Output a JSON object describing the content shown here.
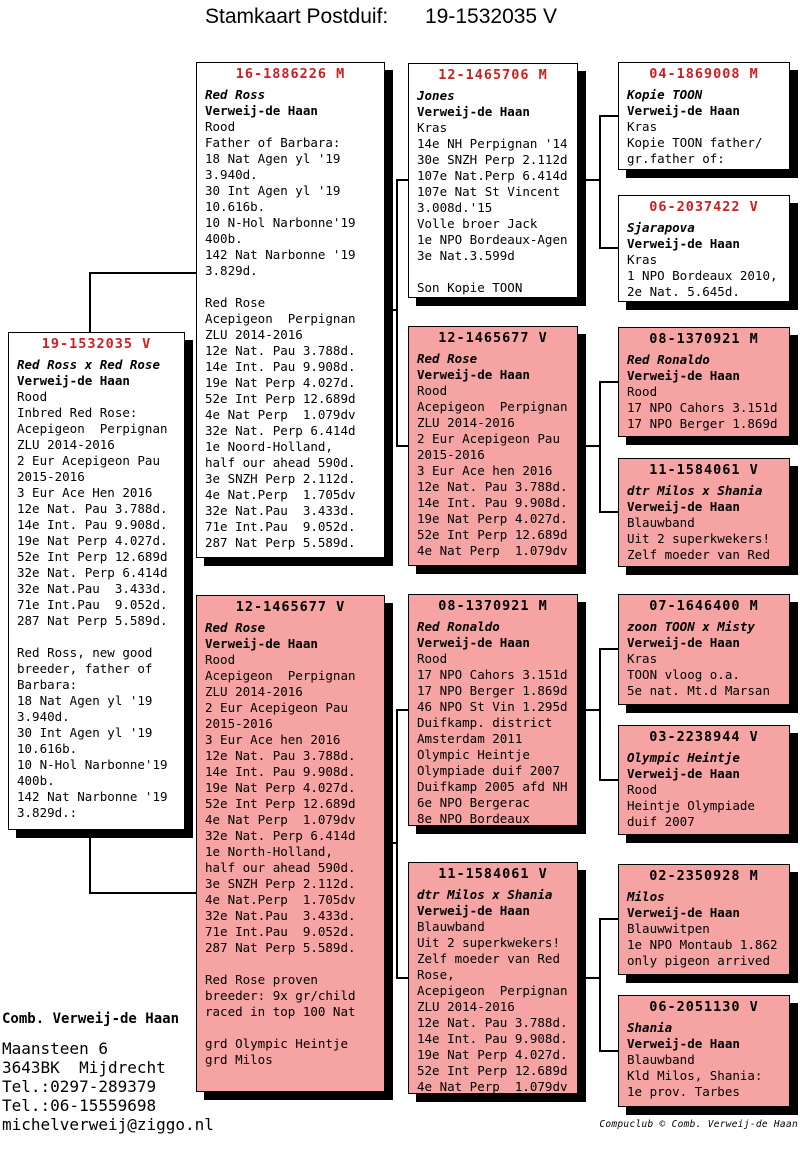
{
  "header": {
    "title_label": "Stamkaart Postduif:",
    "ring_number": "19-1532035 V"
  },
  "colors": {
    "box_pink": "#F5A3A3",
    "title_red": "#CC2020"
  },
  "boxes": [
    {
      "id": "subject",
      "ring": "19-1532035 V",
      "name": "Red Ross x Red Rose",
      "owner": "Verweij-de Haan",
      "lines": [
        "Rood",
        "Inbred Red Rose:",
        "Acepigeon  Perpignan",
        "ZLU 2014-2016",
        "2 Eur Acepigeon Pau",
        "2015-2016",
        "3 Eur Ace Hen 2016",
        "12e Nat. Pau 3.788d.",
        "14e Int. Pau 9.908d.",
        "19e Nat Perp 4.027d.",
        "52e Int Perp 12.689d",
        "32e Nat. Perp 6.414d",
        "32e Nat.Pau  3.433d.",
        "71e Int.Pau  9.052d.",
        "287 Nat Perp 5.589d.",
        "",
        "Red Ross, new good",
        "breeder, father of",
        "Barbara:",
        "18 Nat Agen yl '19",
        "3.940d.",
        "30 Int Agen yl '19",
        "10.616b.",
        "10 N-Hol Narbonne'19",
        "400b.",
        "142 Nat Narbonne '19",
        "3.829d.:"
      ]
    },
    {
      "id": "father",
      "ring": "16-1886226 M",
      "name": "Red Ross",
      "owner": "Verweij-de Haan",
      "lines": [
        "Rood",
        "Father of Barbara:",
        "18 Nat Agen yl '19",
        "3.940d.",
        "30 Int Agen yl '19",
        "10.616b.",
        "10 N-Hol Narbonne'19",
        "400b.",
        "142 Nat Narbonne '19",
        "3.829d.",
        "",
        "Red Rose",
        "Acepigeon  Perpignan",
        "ZLU 2014-2016",
        "12e Nat. Pau 3.788d.",
        "14e Int. Pau 9.908d.",
        "19e Nat Perp 4.027d.",
        "52e Int Perp 12.689d",
        "4e Nat Perp  1.079dv",
        "32e Nat. Perp 6.414d",
        "1e Noord-Holland,",
        "half our ahead 590d.",
        "3e SNZH Perp 2.112d.",
        "4e Nat.Perp  1.705dv",
        "32e Nat.Pau  3.433d.",
        "71e Int.Pau  9.052d.",
        "287 Nat Perp 5.589d."
      ]
    },
    {
      "id": "mother",
      "ring": "12-1465677 V",
      "name": "Red Rose",
      "owner": "Verweij-de Haan",
      "lines": [
        "Rood",
        "Acepigeon  Perpignan",
        "ZLU 2014-2016",
        "2 Eur Acepigeon Pau",
        "2015-2016",
        "3 Eur Ace hen 2016",
        "12e Nat. Pau 3.788d.",
        "14e Int. Pau 9.908d.",
        "19e Nat Perp 4.027d.",
        "52e Int Perp 12.689d",
        "4e Nat Perp  1.079dv",
        "32e Nat. Perp 6.414d",
        "1e North-Holland,",
        "half our ahead 590d.",
        "3e SNZH Perp 2.112d.",
        "4e Nat.Perp  1.705dv",
        "32e Nat.Pau  3.433d.",
        "71e Int.Pau  9.052d.",
        "287 Nat Perp 5.589d.",
        "",
        "Red Rose proven",
        "breeder: 9x gr/child",
        "raced in top 100 Nat",
        "",
        "grd Olympic Heintje",
        "grd Milos"
      ]
    },
    {
      "id": "ff",
      "ring": "12-1465706 M",
      "name": "Jones",
      "owner": "Verweij-de Haan",
      "lines": [
        "Kras",
        "14e NH Perpignan '14",
        "30e SNZH Perp 2.112d",
        "107e Nat.Perp 6.414d",
        "107e Nat St Vincent",
        "3.008d.'15",
        "Volle broer Jack",
        "1e NPO Bordeaux-Agen",
        "3e Nat.3.599d",
        "",
        "Son Kopie TOON"
      ]
    },
    {
      "id": "fm",
      "ring": "12-1465677 V",
      "name": "Red Rose",
      "owner": "Verweij-de Haan",
      "lines": [
        "Rood",
        "Acepigeon  Perpignan",
        "ZLU 2014-2016",
        "2 Eur Acepigeon Pau",
        "2015-2016",
        "3 Eur Ace hen 2016",
        "12e Nat. Pau 3.788d.",
        "14e Int. Pau 9.908d.",
        "19e Nat Perp 4.027d.",
        "52e Int Perp 12.689d",
        "4e Nat Perp  1.079dv"
      ]
    },
    {
      "id": "mf",
      "ring": "08-1370921 M",
      "name": "Red Ronaldo",
      "owner": "Verweij-de Haan",
      "lines": [
        "Rood",
        "17 NPO Cahors 3.151d",
        "17 NPO Berger 1.869d",
        "46 NPO St Vin 1.295d",
        "Duifkamp. district",
        "Amsterdam 2011",
        "Olympic Heintje",
        "Olympiade duif 2007",
        "Duifkamp 2005 afd NH",
        "6e NPO Bergerac",
        "8e NPO Bordeaux"
      ]
    },
    {
      "id": "mm",
      "ring": "11-1584061 V",
      "name": "dtr Milos x Shania",
      "owner": "Verweij-de Haan",
      "lines": [
        "Blauwband",
        "Uit 2 superkwekers!",
        "Zelf moeder van Red",
        "Rose,",
        "Acepigeon  Perpignan",
        "ZLU 2014-2016",
        "12e Nat. Pau 3.788d.",
        "14e Int. Pau 9.908d.",
        "19e Nat Perp 4.027d.",
        "52e Int Perp 12.689d",
        "4e Nat Perp  1.079dv"
      ]
    },
    {
      "id": "fff",
      "ring": "04-1869008 M",
      "name": "Kopie TOON",
      "owner": "Verweij-de Haan",
      "lines": [
        "Kras",
        "Kopie TOON father/",
        "gr.father of:"
      ]
    },
    {
      "id": "ffm",
      "ring": "06-2037422 V",
      "name": "Sjarapova",
      "owner": "Verweij-de Haan",
      "lines": [
        "Kras",
        "1 NPO Bordeaux 2010,",
        "2e Nat. 5.645d."
      ]
    },
    {
      "id": "fmf",
      "ring": "08-1370921 M",
      "name": "Red Ronaldo",
      "owner": "Verweij-de Haan",
      "lines": [
        "Rood",
        "17 NPO Cahors 3.151d",
        "17 NPO Berger 1.869d"
      ]
    },
    {
      "id": "fmm",
      "ring": "11-1584061 V",
      "name": "dtr Milos x Shania",
      "owner": "Verweij-de Haan",
      "lines": [
        "Blauwband",
        "Uit 2 superkwekers!",
        "Zelf moeder van Red"
      ]
    },
    {
      "id": "mff",
      "ring": "07-1646400 M",
      "name": "zoon TOON x Misty",
      "owner": "Verweij-de Haan",
      "lines": [
        "Kras",
        "TOON vloog o.a.",
        "5e nat. Mt.d Marsan"
      ]
    },
    {
      "id": "mfm",
      "ring": "03-2238944 V",
      "name": "Olympic Heintje",
      "owner": "Verweij-de Haan",
      "lines": [
        "Rood",
        "Heintje Olympiade",
        "duif 2007"
      ]
    },
    {
      "id": "mmf",
      "ring": "02-2350928 M",
      "name": "Milos",
      "owner": "Verweij-de Haan",
      "lines": [
        "Blauwwitpen",
        "1e NPO Montaub 1.862",
        "only pigeon arrived"
      ]
    },
    {
      "id": "mmm",
      "ring": "06-2051130 V",
      "name": "Shania",
      "owner": "Verweij-de Haan",
      "lines": [
        "Blauwband",
        "Kld Milos, Shania:",
        "1e prov. Tarbes"
      ]
    }
  ],
  "footer": {
    "combination": "Comb. Verweij-de Haan",
    "address_lines": [
      "Maansteen 6",
      "3643BK  Mijdrecht",
      "Tel.:0297-289379",
      "Tel.:06-15559698",
      "michelverweij@ziggo.nl"
    ]
  },
  "credit": "Compuclub © Comb. Verweij-de Haan"
}
